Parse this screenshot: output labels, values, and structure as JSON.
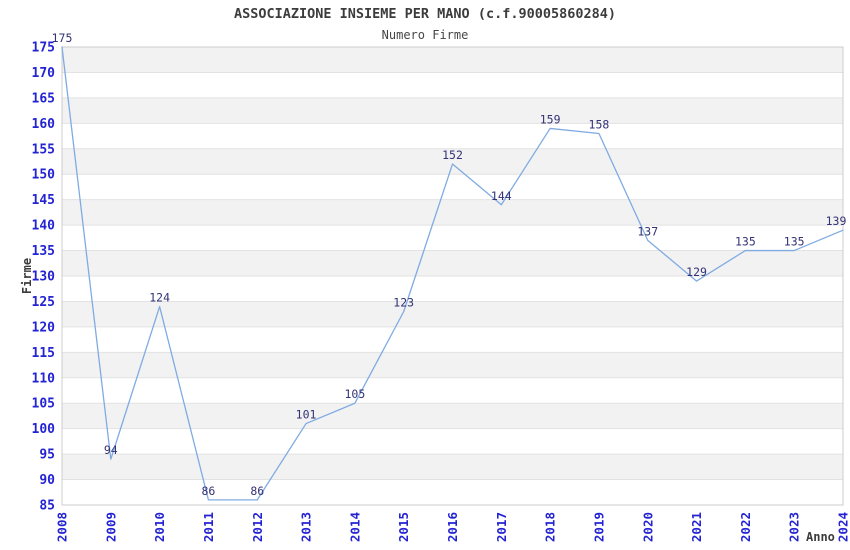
{
  "header": {
    "title": "ASSOCIAZIONE INSIEME PER MANO (c.f.90005860284)",
    "subtitle": "Numero Firme"
  },
  "chart_data": {
    "type": "line",
    "title": "ASSOCIAZIONE INSIEME PER MANO (c.f.90005860284)",
    "subtitle": "Numero Firme",
    "xlabel": "Anno",
    "ylabel": "Firme",
    "x": [
      "2008",
      "2009",
      "2010",
      "2011",
      "2012",
      "2013",
      "2014",
      "2015",
      "2016",
      "2017",
      "2018",
      "2019",
      "2020",
      "2021",
      "2022",
      "2023",
      "2024"
    ],
    "series": [
      {
        "name": "Numero Firme",
        "values": [
          175,
          94,
          124,
          86,
          86,
          101,
          105,
          123,
          152,
          144,
          159,
          158,
          137,
          129,
          135,
          135,
          139
        ]
      }
    ],
    "ylim": [
      85,
      175
    ],
    "ytick_step": 5,
    "yticks": [
      85,
      90,
      95,
      100,
      105,
      110,
      115,
      120,
      125,
      130,
      135,
      140,
      145,
      150,
      155,
      160,
      165,
      170,
      175
    ],
    "grid": "horizontal-bands-alternating",
    "legend_position": "none",
    "point_labels_visible": true,
    "colors": {
      "line": "#7fabe2",
      "tick_label": "#2323d4",
      "point_label": "#333377",
      "band_gray": "#f2f2f2",
      "band_white": "#ffffff",
      "grid_line": "#e2e2e2",
      "border": "#cccccc",
      "title_text": "#3c3c3c"
    }
  }
}
